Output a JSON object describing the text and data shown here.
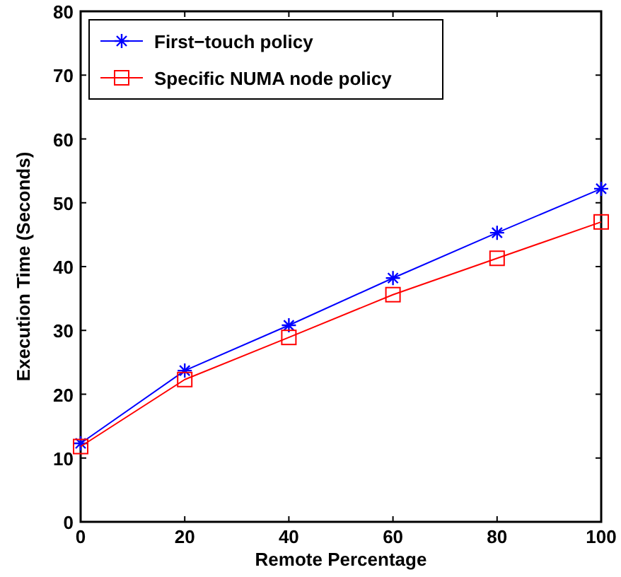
{
  "chart_data": {
    "type": "line",
    "xlabel": "Remote Percentage",
    "ylabel": "Execution Time (Seconds)",
    "x": [
      0,
      20,
      40,
      60,
      80,
      100
    ],
    "xlim": [
      0,
      100
    ],
    "xticks": [
      0,
      20,
      40,
      60,
      80,
      100
    ],
    "ylim": [
      0,
      80
    ],
    "yticks": [
      0,
      10,
      20,
      30,
      40,
      50,
      60,
      70,
      80
    ],
    "grid": false,
    "legend": "top left",
    "line_style": "solid",
    "series": [
      {
        "name": "First−touch policy",
        "color": "#0000ff",
        "marker": "cross",
        "values": [
          12.3,
          23.7,
          30.8,
          38.2,
          45.3,
          52.2
        ]
      },
      {
        "name": "Specific NUMA node policy",
        "color": "#ff0000",
        "marker": "square",
        "values": [
          11.8,
          22.3,
          28.9,
          35.6,
          41.3,
          47.0
        ]
      }
    ]
  }
}
